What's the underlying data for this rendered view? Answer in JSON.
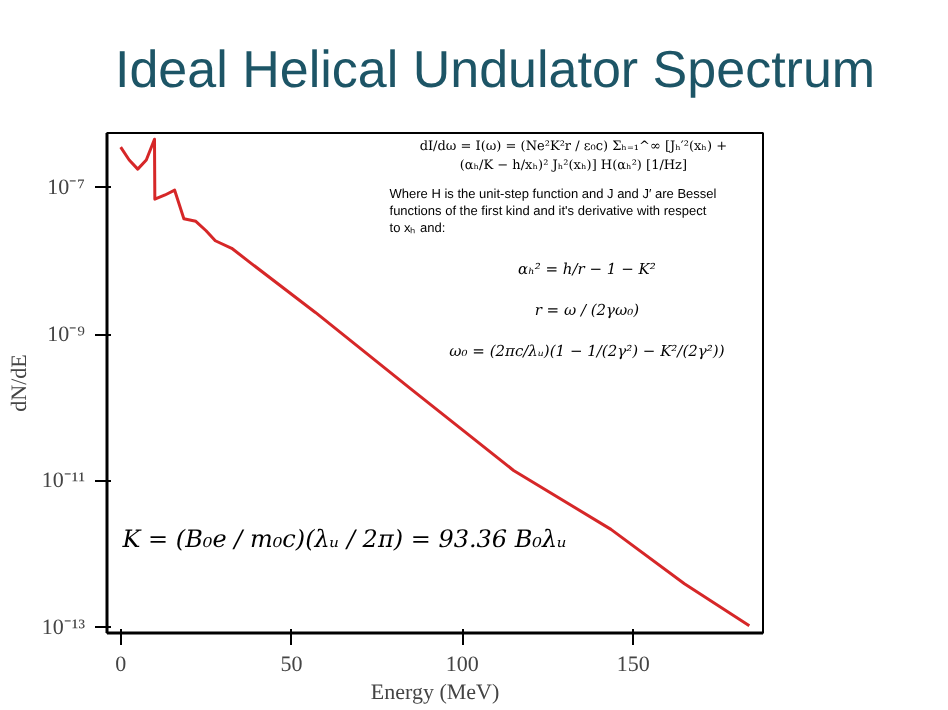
{
  "chart_data": {
    "type": "line",
    "title": "Ideal Helical Undulator Spectrum",
    "xlabel": "Energy (MeV)",
    "ylabel": "dN/dE",
    "x": [
      0,
      2.5,
      5,
      7.5,
      9.9,
      10,
      13,
      15.8,
      18.5,
      22,
      25,
      27.7,
      32.5,
      38,
      57,
      85,
      115,
      143.5,
      165,
      184
    ],
    "series": [
      {
        "color": "#d62728",
        "values": [
          3.6e-07,
          2.4e-07,
          1.8e-07,
          2.4e-07,
          4.6e-07,
          7e-08,
          8e-08,
          9.3e-08,
          3.8e-08,
          3.5e-08,
          2.6e-08,
          1.9e-08,
          1.5e-08,
          9.5e-09,
          2e-09,
          1.8e-10,
          1.4e-11,
          2.2e-12,
          4e-13,
          1.07e-13
        ]
      }
    ],
    "xlim": [
      -4,
      188
    ],
    "ylim": [
      8.5e-14,
      5.6e-07
    ],
    "xticks": [
      0,
      50,
      100,
      150
    ],
    "yticks": [
      {
        "value": 1e-07,
        "label": "10⁻⁷"
      },
      {
        "value": 1e-09,
        "label": "10⁻⁹"
      },
      {
        "value": 1e-11,
        "label": "10⁻¹¹"
      },
      {
        "value": 1e-13,
        "label": "10⁻¹³"
      }
    ],
    "log": "y",
    "grid": false,
    "marker": "none",
    "line_style": "solid",
    "annotations": [
      "dI/dω = I(ω) = (Ne²K²r / ε₀c) Σₕ₌₁^∞ [Jₕ′²(xₕ) + (αₕ/K − h/xₕ)² Jₕ²(xₕ)] H(αₕ²) [1/Hz]",
      "Where H is the unit-step function and J and J′ are Bessel functions of the first kind and it's derivative with respect to xₕ and:",
      "αₕ² = h/r − 1 − K²",
      "r = ω / (2γω₀)",
      "ω₀ = (2πc/λᵤ)(1 − 1/(2γ²) − K²/(2γ²))",
      "K = (B₀e / m₀c)(λᵤ / 2π) = 93.36 B₀λᵤ"
    ]
  }
}
